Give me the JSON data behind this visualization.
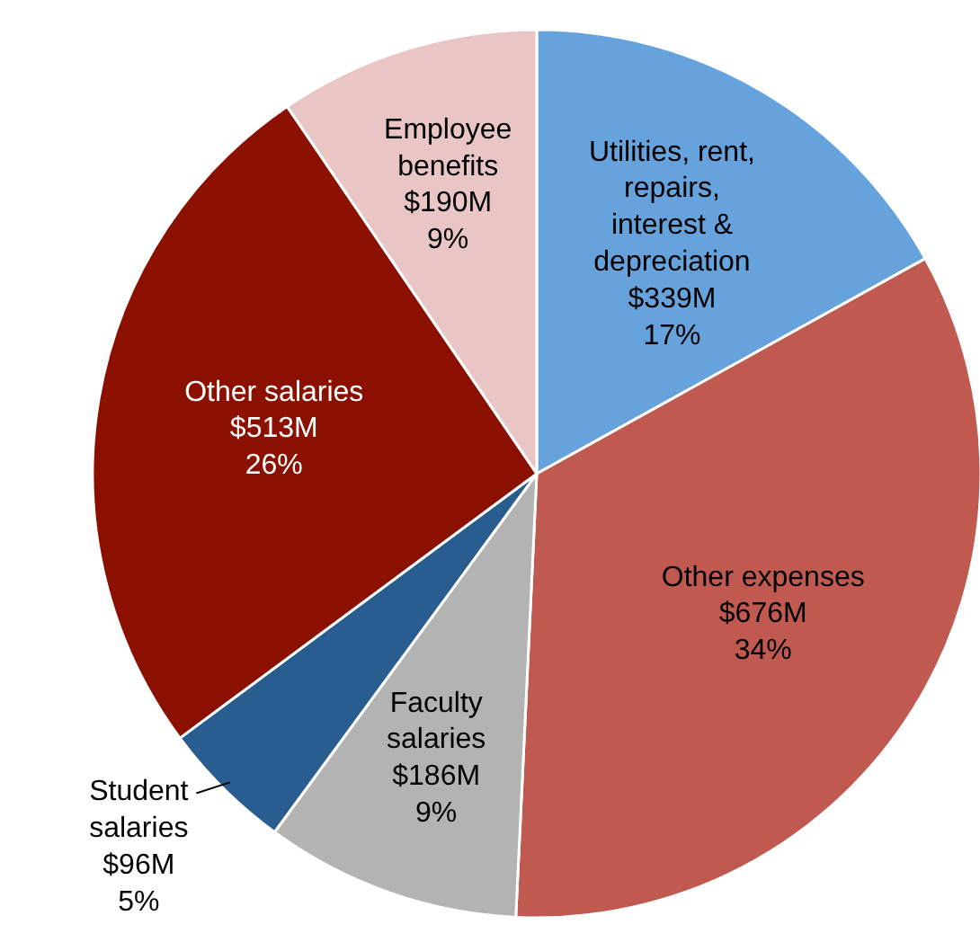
{
  "chart_data": {
    "type": "pie",
    "categories": [
      "Utilities, rent, repairs, interest & depreciation",
      "Other expenses",
      "Faculty salaries",
      "Student salaries",
      "Other salaries",
      "Employee benefits"
    ],
    "values": [
      339,
      676,
      186,
      96,
      513,
      190
    ],
    "colors": [
      "#66a3dc",
      "#c05a50",
      "#b3b3b3",
      "#2a5d8f",
      "#8b1000",
      "#e9c5c5"
    ],
    "value_labels": [
      "$339M",
      "$676M",
      "$186M",
      "$96M",
      "$513M",
      "$190M"
    ],
    "annotations": [
      "17%",
      "34%",
      "9%",
      "5%",
      "26%",
      "9%"
    ]
  }
}
